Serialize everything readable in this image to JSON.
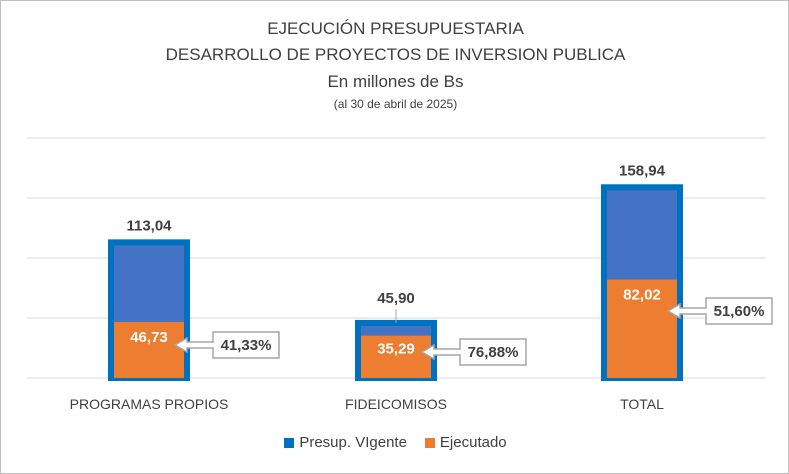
{
  "titles": {
    "line1": "EJECUCIÓN PRESUPUESTARIA",
    "line2": "DESARROLLO DE PROYECTOS DE INVERSION PUBLICA",
    "line3": "En millones de Bs",
    "line4": "(al 30 de abril de 2025)"
  },
  "colors": {
    "vigente_fill": "#4472c4",
    "vigente_border": "#0070c0",
    "ejecutado": "#ed7d31",
    "grid": "#d9d9d9",
    "callout_border": "#a6a6a6"
  },
  "chart_data": {
    "type": "bar",
    "categories": [
      "PROGRAMAS PROPIOS",
      "FIDEICOMISOS",
      "TOTAL"
    ],
    "series": [
      {
        "name": "Presup. VIgente",
        "values": [
          113.04,
          45.9,
          158.94
        ],
        "labels": [
          "113,04",
          "45,90",
          "158,94"
        ]
      },
      {
        "name": "Ejecutado",
        "values": [
          46.73,
          35.29,
          82.02
        ],
        "labels": [
          "46,73",
          "35,29",
          "82,02"
        ]
      }
    ],
    "percent_labels": [
      "41,33%",
      "76,88%",
      "51,60%"
    ],
    "ylim": [
      0,
      200
    ],
    "grid": true,
    "legend": "bottom"
  }
}
